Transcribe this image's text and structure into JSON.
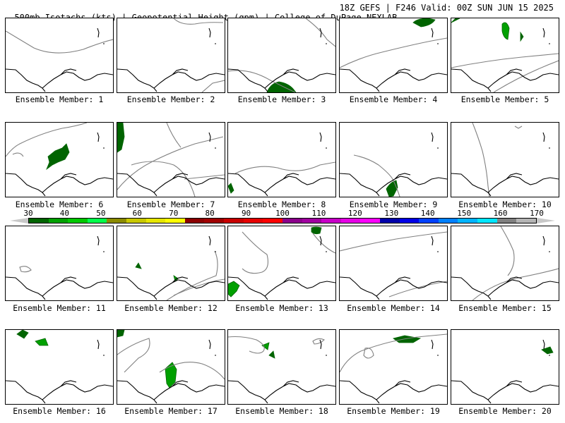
{
  "header": {
    "left": "500mb Isotachs (kts) | Geopotential Height (gpm) | College of DuPage NEXLAB",
    "right": "18Z GEFS | F246 Valid: 00Z SUN JUN 15 2025"
  },
  "colorbar": {
    "labels": [
      "30",
      "40",
      "50",
      "60",
      "70",
      "80",
      "90",
      "100",
      "110",
      "120",
      "130",
      "140",
      "150",
      "160",
      "170"
    ],
    "colors": [
      "#006400",
      "#00a000",
      "#00c800",
      "#00ff4a",
      "#8b8b00",
      "#c8c800",
      "#e6e600",
      "#ffff00",
      "#8b0000",
      "#a00000",
      "#c80000",
      "#e60000",
      "#ff0000",
      "#8b008b",
      "#a000a0",
      "#c800c8",
      "#e600e6",
      "#ff00ff",
      "#0000aa",
      "#0000e6",
      "#0040ff",
      "#0080ff",
      "#00b4ff",
      "#00e6ff",
      "#808080",
      "#b4b4b4"
    ],
    "arrow_color": "#c8c8c8"
  },
  "panels": [
    {
      "label": "Ensemble Member: 1"
    },
    {
      "label": "Ensemble Member: 2"
    },
    {
      "label": "Ensemble Member: 3"
    },
    {
      "label": "Ensemble Member: 4"
    },
    {
      "label": "Ensemble Member: 5"
    },
    {
      "label": "Ensemble Member: 6"
    },
    {
      "label": "Ensemble Member: 7"
    },
    {
      "label": "Ensemble Member: 8"
    },
    {
      "label": "Ensemble Member: 9"
    },
    {
      "label": "Ensemble Member: 10"
    },
    {
      "label": "Ensemble Member: 11"
    },
    {
      "label": "Ensemble Member: 12"
    },
    {
      "label": "Ensemble Member: 13"
    },
    {
      "label": "Ensemble Member: 14"
    },
    {
      "label": "Ensemble Member: 15"
    },
    {
      "label": "Ensemble Member: 16"
    },
    {
      "label": "Ensemble Member: 17"
    },
    {
      "label": "Ensemble Member: 18"
    },
    {
      "label": "Ensemble Member: 19"
    },
    {
      "label": "Ensemble Member: 20"
    }
  ],
  "colors": {
    "coastline": "#000000",
    "height_contour": "#808080",
    "isotach_fill_dark": "#006400",
    "isotach_fill_mid": "#00a000"
  }
}
